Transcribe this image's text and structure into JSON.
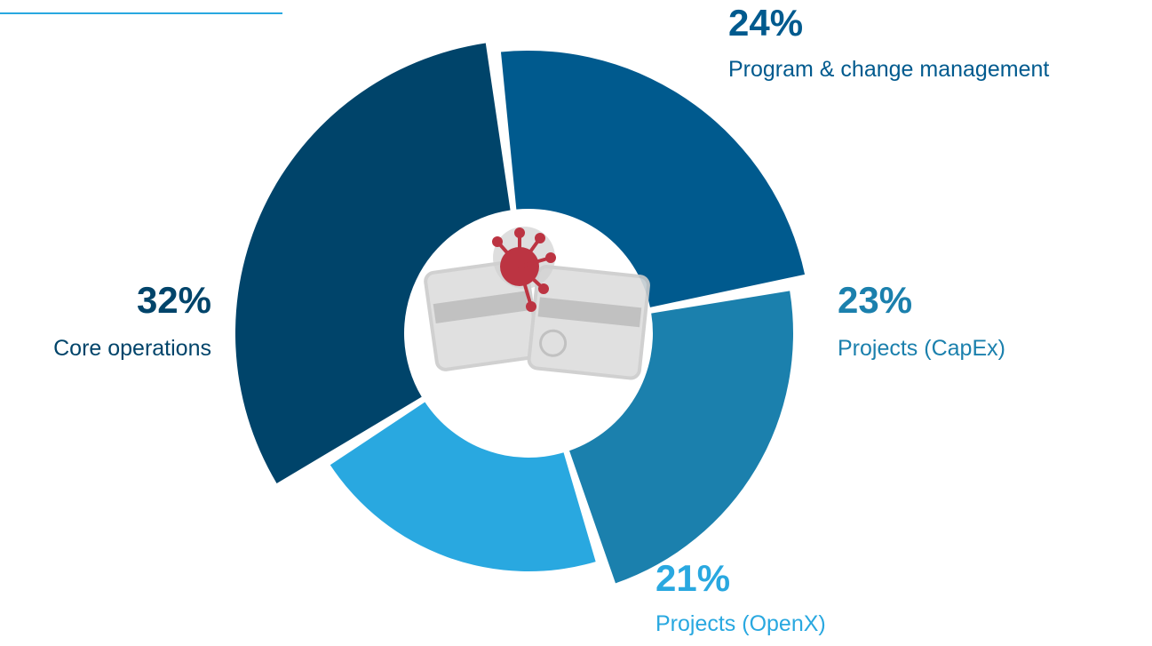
{
  "chart_data": {
    "type": "donut",
    "categories": [
      "Program & change management",
      "Projects (CapEx)",
      "Projects (OpenX)",
      "Core operations"
    ],
    "values": [
      24,
      23,
      21,
      32
    ],
    "value_labels": [
      "24%",
      "23%",
      "21%",
      "32%"
    ],
    "colors": [
      "#005a8e",
      "#1b80ad",
      "#29a8e0",
      "#00446a"
    ]
  }
}
